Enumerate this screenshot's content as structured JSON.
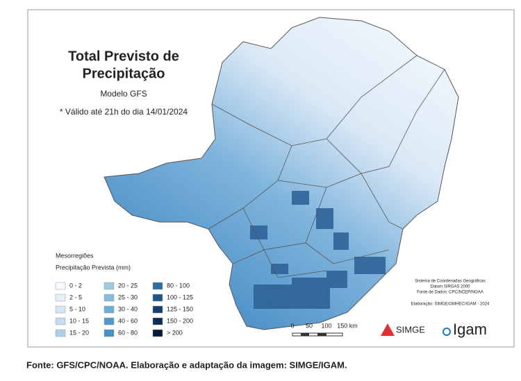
{
  "title": [
    "Total Previsto de",
    "Precipitação"
  ],
  "model": "Modelo GFS",
  "validity": "* Válido até 21h do dia 14/01/2024",
  "legend": {
    "layer": "Mesorregiões",
    "heading": "Precipitação Prevista (mm)",
    "items": [
      {
        "label": "0 - 2",
        "color": "#f7fbff"
      },
      {
        "label": "2 - 5",
        "color": "#e6f0fa"
      },
      {
        "label": "5 - 10",
        "color": "#d6e6f4"
      },
      {
        "label": "10 - 15",
        "color": "#c6dbef"
      },
      {
        "label": "15 - 20",
        "color": "#b0d0ea"
      },
      {
        "label": "20 - 25",
        "color": "#9ecae1"
      },
      {
        "label": "25 - 30",
        "color": "#84bcdc"
      },
      {
        "label": "30 - 40",
        "color": "#6baed6"
      },
      {
        "label": "40 - 60",
        "color": "#5599cb"
      },
      {
        "label": "60 - 80",
        "color": "#4292c6"
      },
      {
        "label": "80 - 100",
        "color": "#2f6fa4"
      },
      {
        "label": "100 - 125",
        "color": "#21578a"
      },
      {
        "label": "125 - 150",
        "color": "#163f6e"
      },
      {
        "label": "150 - 200",
        "color": "#0d2c54"
      },
      {
        "label": "> 200",
        "color": "#061a36"
      }
    ]
  },
  "credits": [
    "Sistema de Coordenadas Geográficas",
    "Datum SIRGAS 2000",
    "Fonte de Dados: CPC/NCEP/NOAA",
    "Elaboração: SIMGE/GMHEC/IGAM - 2024"
  ],
  "scale": [
    "0",
    "50",
    "100",
    "150 km"
  ],
  "logos": [
    "SIMGE",
    "Igam"
  ],
  "caption": "Fonte: GFS/CPC/NOAA. Elaboração e adaptação da imagem: SIMGE/IGAM."
}
